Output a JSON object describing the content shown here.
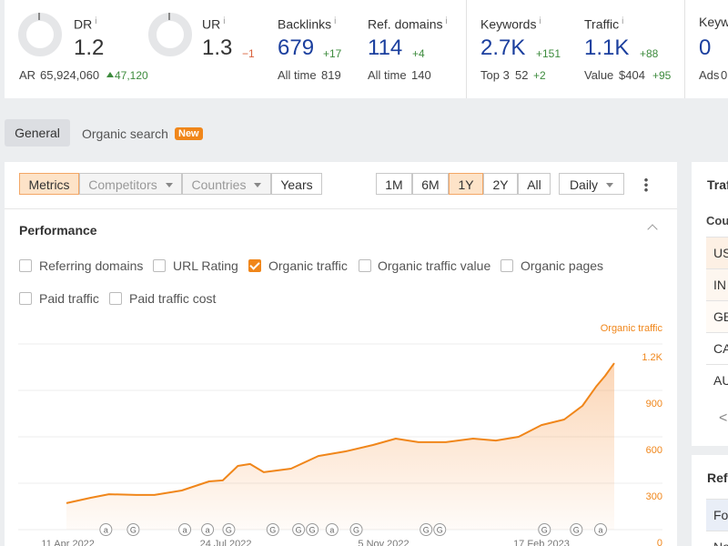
{
  "top_metrics": {
    "info_icon": "i",
    "dr": {
      "label": "DR",
      "value": "1.2"
    },
    "ar": {
      "label": "AR",
      "value": "65,924,060",
      "change": "47,120"
    },
    "ur": {
      "label": "UR",
      "value": "1.3",
      "change": "−1"
    },
    "backlinks": {
      "label": "Backlinks",
      "value": "679",
      "change": "+17",
      "sub_label": "All time",
      "sub_value": "819"
    },
    "ref_domains": {
      "label": "Ref. domains",
      "value": "114",
      "change": "+4",
      "sub_label": "All time",
      "sub_value": "140"
    },
    "keywords": {
      "label": "Keywords",
      "value": "2.7K",
      "change": "+151",
      "sub_label": "Top 3",
      "sub_value": "52",
      "sub_change": "+2"
    },
    "traffic": {
      "label": "Traffic",
      "value": "1.1K",
      "change": "+88",
      "sub_label": "Value",
      "sub_value": "$404",
      "sub_change": "+95"
    },
    "keyw": {
      "label": "Keyw",
      "value": "0",
      "sub_label": "Ads",
      "sub_value": "0"
    }
  },
  "tabs": {
    "items": [
      "General",
      "Organic search"
    ],
    "badge": "New"
  },
  "toolbar": {
    "segments": [
      "Metrics",
      "Competitors",
      "Countries",
      "Years"
    ],
    "ranges": [
      "1M",
      "6M",
      "1Y",
      "2Y",
      "All"
    ],
    "interval": "Daily"
  },
  "performance": {
    "title": "Performance",
    "checkboxes": [
      {
        "label": "Referring domains",
        "checked": false
      },
      {
        "label": "URL Rating",
        "checked": false
      },
      {
        "label": "Organic traffic",
        "checked": true
      },
      {
        "label": "Organic traffic value",
        "checked": false
      },
      {
        "label": "Organic pages",
        "checked": false
      },
      {
        "label": "Paid traffic",
        "checked": false
      },
      {
        "label": "Paid traffic cost",
        "checked": false
      }
    ]
  },
  "chart_data": {
    "type": "line",
    "x": [
      "10 Apr 2022",
      "26 Apr 2022",
      "8 May 2022",
      "26 May 2022",
      "7 Jun 2022",
      "25 Jun 2022",
      "13 Jul 2022",
      "22 Jul 2022",
      "1 Aug 2022",
      "9 Aug 2022",
      "18 Aug 2022",
      "5 Sep 2022",
      "23 Sep 2022",
      "11 Oct 2022",
      "29 Oct 2022",
      "13 Nov 2022",
      "28 Nov 2022",
      "16 Dec 2022",
      "3 Jan 2023",
      "18 Jan 2023",
      "2 Feb 2023",
      "17 Feb 2023",
      "4 Mar 2023",
      "16 Mar 2023",
      "25 Mar 2023",
      "31 Mar 2023",
      "6 Apr 2023"
    ],
    "series": [
      {
        "name": "Organic traffic",
        "color": "#f0861a",
        "values": [
          171,
          206,
          229,
          224,
          224,
          253,
          312,
          318,
          412,
          424,
          371,
          394,
          476,
          506,
          547,
          588,
          565,
          565,
          588,
          576,
          600,
          676,
          712,
          800,
          924,
          994,
          1076
        ]
      }
    ],
    "xlim": [
      "10 Apr 2022",
      "6 Apr 2023"
    ],
    "xticks": [
      "11 Apr 2022",
      "24 Jul 2022",
      "5 Nov 2022",
      "17 Feb 2023"
    ],
    "ylim": [
      0,
      1200
    ],
    "yticks": [
      0,
      300,
      600,
      900,
      {
        "value": 1200,
        "label": "1.2K"
      }
    ],
    "grid": true,
    "annotations": [
      {
        "x": "6 May 2022",
        "label": "a"
      },
      {
        "x": "24 May 2022",
        "label": "G"
      },
      {
        "x": "27 Jun 2022",
        "label": "a"
      },
      {
        "x": "12 Jul 2022",
        "label": "a"
      },
      {
        "x": "26 Jul 2022",
        "label": "G"
      },
      {
        "x": "24 Aug 2022",
        "label": "G"
      },
      {
        "x": "10 Sep 2022",
        "label": "G"
      },
      {
        "x": "19 Sep 2022",
        "label": "G"
      },
      {
        "x": "2 Oct 2022",
        "label": "a"
      },
      {
        "x": "18 Oct 2022",
        "label": "G"
      },
      {
        "x": "3 Dec 2022",
        "label": "G"
      },
      {
        "x": "12 Dec 2022",
        "label": "G"
      },
      {
        "x": "19 Feb 2023",
        "label": "G"
      },
      {
        "x": "12 Mar 2023",
        "label": "G"
      },
      {
        "x": "28 Mar 2023",
        "label": "a"
      }
    ]
  },
  "side_panel": {
    "title": "Traf",
    "column": "Cou",
    "rows": [
      "US",
      "IN",
      "GB",
      "CA",
      "AU"
    ],
    "pager": "<",
    "second_title": "Refe",
    "second_rows": [
      "Fo",
      "No"
    ]
  }
}
